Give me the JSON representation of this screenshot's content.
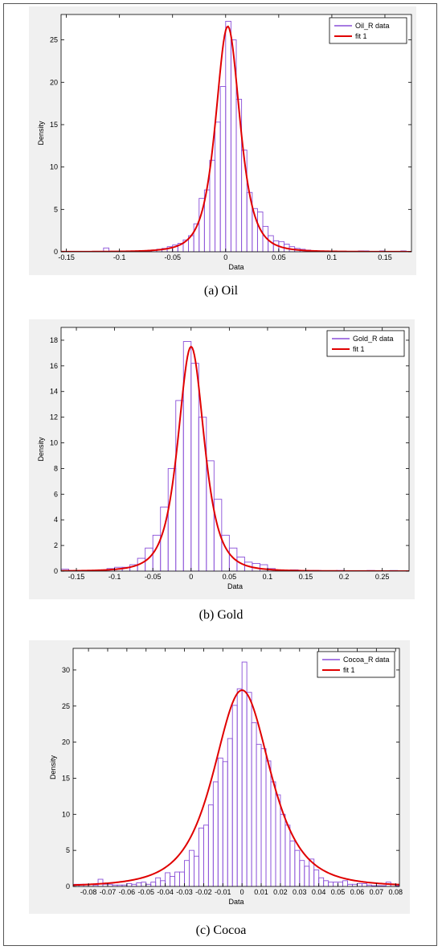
{
  "charts": [
    {
      "caption": "(a) Oil",
      "chart_data": {
        "type": "bar",
        "xlabel": "Data",
        "ylabel": "Density",
        "xlim": [
          -0.155,
          0.175
        ],
        "ylim": [
          0,
          28
        ],
        "xticks": [
          -0.15,
          -0.1,
          -0.05,
          0,
          0.05,
          0.1,
          0.15
        ],
        "xtick_labels": [
          "-0.15",
          "-0.1",
          "-0.05",
          "0",
          "0.05",
          "0.1",
          "0.15"
        ],
        "yticks": [
          0,
          5,
          10,
          15,
          20,
          25
        ],
        "ytick_labels": [
          "0",
          "5",
          "10",
          "15",
          "20",
          "25"
        ],
        "bin_width": 0.005,
        "bins": [
          [
            -0.155,
            0.05
          ],
          [
            -0.15,
            0.05
          ],
          [
            -0.145,
            0.05
          ],
          [
            -0.14,
            0
          ],
          [
            -0.135,
            0
          ],
          [
            -0.13,
            0
          ],
          [
            -0.125,
            0
          ],
          [
            -0.12,
            0
          ],
          [
            -0.115,
            0.45
          ],
          [
            -0.11,
            0
          ],
          [
            -0.105,
            0
          ],
          [
            -0.1,
            0.05
          ],
          [
            -0.095,
            0.05
          ],
          [
            -0.09,
            0.05
          ],
          [
            -0.085,
            0.1
          ],
          [
            -0.08,
            0.1
          ],
          [
            -0.075,
            0.15
          ],
          [
            -0.07,
            0.2
          ],
          [
            -0.065,
            0.3
          ],
          [
            -0.06,
            0.4
          ],
          [
            -0.055,
            0.6
          ],
          [
            -0.05,
            0.8
          ],
          [
            -0.045,
            1.0
          ],
          [
            -0.04,
            1.4
          ],
          [
            -0.035,
            1.9
          ],
          [
            -0.03,
            3.3
          ],
          [
            -0.025,
            6.3
          ],
          [
            -0.02,
            7.3
          ],
          [
            -0.015,
            10.8
          ],
          [
            -0.01,
            15.3
          ],
          [
            -0.005,
            19.5
          ],
          [
            0,
            27.2
          ],
          [
            0.005,
            25.0
          ],
          [
            0.01,
            18.0
          ],
          [
            0.015,
            12.0
          ],
          [
            0.02,
            7.0
          ],
          [
            0.025,
            5.1
          ],
          [
            0.03,
            4.7
          ],
          [
            0.035,
            3.0
          ],
          [
            0.04,
            1.9
          ],
          [
            0.045,
            1.3
          ],
          [
            0.05,
            1.2
          ],
          [
            0.055,
            0.9
          ],
          [
            0.06,
            0.6
          ],
          [
            0.065,
            0.4
          ],
          [
            0.07,
            0.3
          ],
          [
            0.075,
            0.2
          ],
          [
            0.08,
            0.1
          ],
          [
            0.085,
            0.1
          ],
          [
            0.09,
            0.05
          ],
          [
            0.095,
            0.05
          ],
          [
            0.1,
            0.05
          ],
          [
            0.105,
            0.05
          ],
          [
            0.11,
            0.05
          ],
          [
            0.115,
            0
          ],
          [
            0.12,
            0.05
          ],
          [
            0.125,
            0.1
          ],
          [
            0.13,
            0.1
          ],
          [
            0.135,
            0
          ],
          [
            0.14,
            0.05
          ],
          [
            0.145,
            0.1
          ],
          [
            0.15,
            0
          ],
          [
            0.155,
            0
          ],
          [
            0.16,
            0.05
          ],
          [
            0.165,
            0.1
          ],
          [
            0.17,
            0
          ]
        ],
        "fit": {
          "center": 0.002,
          "peak": 26.6,
          "scale": 0.012
        },
        "legend": [
          "Oil_R data",
          "fit 1"
        ],
        "legend_position": "top-right",
        "grid": false
      }
    },
    {
      "caption": "(b) Gold",
      "chart_data": {
        "type": "bar",
        "xlabel": "Data",
        "ylabel": "Density",
        "xlim": [
          -0.17,
          0.285
        ],
        "ylim": [
          0,
          19
        ],
        "xticks": [
          -0.15,
          -0.1,
          -0.05,
          0,
          0.05,
          0.1,
          0.15,
          0.2,
          0.25
        ],
        "xtick_labels": [
          "-0.15",
          "-0.1",
          "-0.05",
          "0",
          "0.05",
          "0.1",
          "0.15",
          "0.2",
          "0.25"
        ],
        "yticks": [
          0,
          2,
          4,
          6,
          8,
          10,
          12,
          14,
          16,
          18
        ],
        "ytick_labels": [
          "0",
          "2",
          "4",
          "6",
          "8",
          "10",
          "12",
          "14",
          "16",
          "18"
        ],
        "bin_width": 0.01,
        "bins": [
          [
            -0.17,
            0.15
          ],
          [
            -0.16,
            0.05
          ],
          [
            -0.15,
            0
          ],
          [
            -0.14,
            0
          ],
          [
            -0.13,
            0.05
          ],
          [
            -0.12,
            0.1
          ],
          [
            -0.11,
            0.2
          ],
          [
            -0.1,
            0.3
          ],
          [
            -0.09,
            0.3
          ],
          [
            -0.08,
            0.5
          ],
          [
            -0.07,
            1.0
          ],
          [
            -0.06,
            1.8
          ],
          [
            -0.05,
            2.8
          ],
          [
            -0.04,
            5.0
          ],
          [
            -0.03,
            8.0
          ],
          [
            -0.02,
            13.3
          ],
          [
            -0.01,
            17.9
          ],
          [
            0,
            16.2
          ],
          [
            0.01,
            12.0
          ],
          [
            0.02,
            8.6
          ],
          [
            0.03,
            5.6
          ],
          [
            0.04,
            2.8
          ],
          [
            0.05,
            1.8
          ],
          [
            0.06,
            1.1
          ],
          [
            0.07,
            0.7
          ],
          [
            0.08,
            0.6
          ],
          [
            0.09,
            0.5
          ],
          [
            0.1,
            0.2
          ],
          [
            0.11,
            0.1
          ],
          [
            0.12,
            0.05
          ],
          [
            0.13,
            0.1
          ],
          [
            0.14,
            0.05
          ],
          [
            0.15,
            0.05
          ],
          [
            0.16,
            0.05
          ],
          [
            0.17,
            0
          ],
          [
            0.18,
            0
          ],
          [
            0.19,
            0.05
          ],
          [
            0.2,
            0
          ],
          [
            0.21,
            0
          ],
          [
            0.22,
            0
          ],
          [
            0.23,
            0.05
          ],
          [
            0.24,
            0
          ],
          [
            0.25,
            0
          ],
          [
            0.26,
            0.05
          ],
          [
            0.27,
            0
          ]
        ],
        "fit": {
          "center": 0.0,
          "peak": 17.5,
          "scale": 0.018
        },
        "legend": [
          "Gold_R data",
          "fit 1"
        ],
        "legend_position": "top-right",
        "grid": false
      }
    },
    {
      "caption": "(c) Cocoa",
      "chart_data": {
        "type": "bar",
        "xlabel": "Data",
        "ylabel": "Density",
        "xlim": [
          -0.088,
          0.082
        ],
        "ylim": [
          0,
          33
        ],
        "xticks": [
          -0.08,
          -0.07,
          -0.06,
          -0.05,
          -0.04,
          -0.03,
          -0.02,
          -0.01,
          0,
          0.01,
          0.02,
          0.03,
          0.04,
          0.05,
          0.06,
          0.07,
          0.08
        ],
        "xtick_labels": [
          "-0.08",
          "-0.07",
          "-0.06",
          "-0.05",
          "-0.04",
          "-0.03",
          "-0.02",
          "-0.01",
          "0",
          "0.01",
          "0.02",
          "0.03",
          "0.04",
          "0.05",
          "0.06",
          "0.07",
          "0.08"
        ],
        "yticks": [
          0,
          5,
          10,
          15,
          20,
          25,
          30
        ],
        "ytick_labels": [
          "0",
          "5",
          "10",
          "15",
          "20",
          "25",
          "30"
        ],
        "bin_width": 0.0025,
        "bins": [
          [
            -0.0875,
            0.3
          ],
          [
            -0.085,
            0.3
          ],
          [
            -0.0825,
            0.3
          ],
          [
            -0.08,
            0.3
          ],
          [
            -0.0775,
            0.2
          ],
          [
            -0.075,
            1.0
          ],
          [
            -0.0725,
            0.3
          ],
          [
            -0.07,
            0.3
          ],
          [
            -0.0675,
            0.2
          ],
          [
            -0.065,
            0.2
          ],
          [
            -0.0625,
            0.2
          ],
          [
            -0.06,
            0.4
          ],
          [
            -0.0575,
            0.3
          ],
          [
            -0.055,
            0.5
          ],
          [
            -0.0525,
            0.6
          ],
          [
            -0.05,
            0.3
          ],
          [
            -0.0475,
            0.6
          ],
          [
            -0.045,
            1.2
          ],
          [
            -0.0425,
            0.8
          ],
          [
            -0.04,
            1.9
          ],
          [
            -0.0375,
            1.4
          ],
          [
            -0.035,
            2.0
          ],
          [
            -0.0325,
            2.0
          ],
          [
            -0.03,
            3.6
          ],
          [
            -0.0275,
            5.0
          ],
          [
            -0.025,
            4.2
          ],
          [
            -0.0225,
            8.1
          ],
          [
            -0.02,
            8.5
          ],
          [
            -0.0175,
            11.3
          ],
          [
            -0.015,
            14.5
          ],
          [
            -0.0125,
            17.8
          ],
          [
            -0.01,
            17.3
          ],
          [
            -0.0075,
            20.5
          ],
          [
            -0.005,
            25.1
          ],
          [
            -0.0025,
            27.4
          ],
          [
            0,
            31.1
          ],
          [
            0.0025,
            26.9
          ],
          [
            0.005,
            22.7
          ],
          [
            0.0075,
            19.7
          ],
          [
            0.01,
            19.1
          ],
          [
            0.0125,
            17.4
          ],
          [
            0.015,
            14.5
          ],
          [
            0.0175,
            12.7
          ],
          [
            0.02,
            10.0
          ],
          [
            0.0225,
            8.5
          ],
          [
            0.025,
            6.3
          ],
          [
            0.0275,
            5.0
          ],
          [
            0.03,
            3.6
          ],
          [
            0.0325,
            2.8
          ],
          [
            0.035,
            3.8
          ],
          [
            0.0375,
            2.3
          ],
          [
            0.04,
            1.2
          ],
          [
            0.0425,
            0.8
          ],
          [
            0.045,
            0.6
          ],
          [
            0.0475,
            0.6
          ],
          [
            0.05,
            0.6
          ],
          [
            0.0525,
            0.8
          ],
          [
            0.055,
            0.3
          ],
          [
            0.0575,
            0.3
          ],
          [
            0.06,
            0.4
          ],
          [
            0.0625,
            0.4
          ],
          [
            0.065,
            0.2
          ],
          [
            0.0675,
            0.1
          ],
          [
            0.07,
            0.1
          ],
          [
            0.0725,
            0.1
          ],
          [
            0.075,
            0.6
          ],
          [
            0.0775,
            0.3
          ],
          [
            0.08,
            0.1
          ]
        ],
        "fit": {
          "center": 0.0,
          "peak": 27.2,
          "scale": 0.0155
        },
        "legend": [
          "Cocoa_R data",
          "fit 1"
        ],
        "legend_position": "top-right",
        "grid": false
      }
    }
  ],
  "colors": {
    "bar_edge": "#8a4fd8",
    "fit_line": "#e00000",
    "panel_bg": "#f0f0f0",
    "axes_bg": "#ffffff"
  }
}
